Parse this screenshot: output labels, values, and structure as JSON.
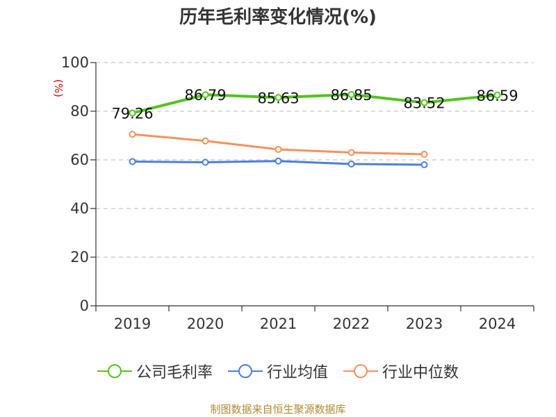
{
  "chart_data": {
    "type": "line",
    "title": "历年毛利率变化情况(%)",
    "ylabel": "(%)",
    "xlabel": "",
    "categories": [
      "2019",
      "2020",
      "2021",
      "2022",
      "2023",
      "2024"
    ],
    "ylim": [
      0,
      100
    ],
    "yticks": [
      0,
      20,
      40,
      60,
      80,
      100
    ],
    "grid": "horizontal dashed",
    "legend_position": "bottom",
    "series": [
      {
        "name": "公司毛利率",
        "color": "#52c41a",
        "values": [
          79.26,
          86.79,
          85.63,
          86.85,
          83.52,
          86.59
        ],
        "labels": [
          "79.26",
          "86.79",
          "85.63",
          "86.85",
          "83.52",
          "86.59"
        ]
      },
      {
        "name": "行业均值",
        "color": "#4a7fdc",
        "values": [
          59.3,
          59.0,
          59.5,
          58.3,
          58.0,
          null
        ]
      },
      {
        "name": "行业中位数",
        "color": "#f5915c",
        "values": [
          70.5,
          67.8,
          64.3,
          63.0,
          62.3,
          null
        ]
      }
    ]
  },
  "footer": "制图数据来自恒生聚源数据库"
}
